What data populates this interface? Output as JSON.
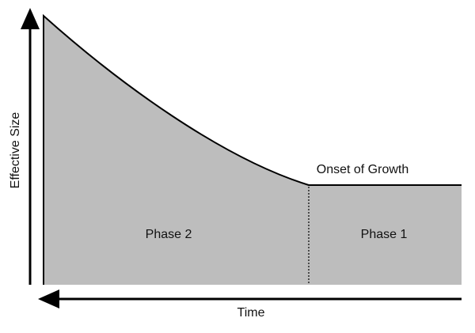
{
  "y_axis_label": "Effective Size",
  "x_axis_label": "Time",
  "annotation": "Onset of Growth",
  "regions": [
    {
      "label": "Phase 2"
    },
    {
      "label": "Phase 1"
    }
  ]
}
